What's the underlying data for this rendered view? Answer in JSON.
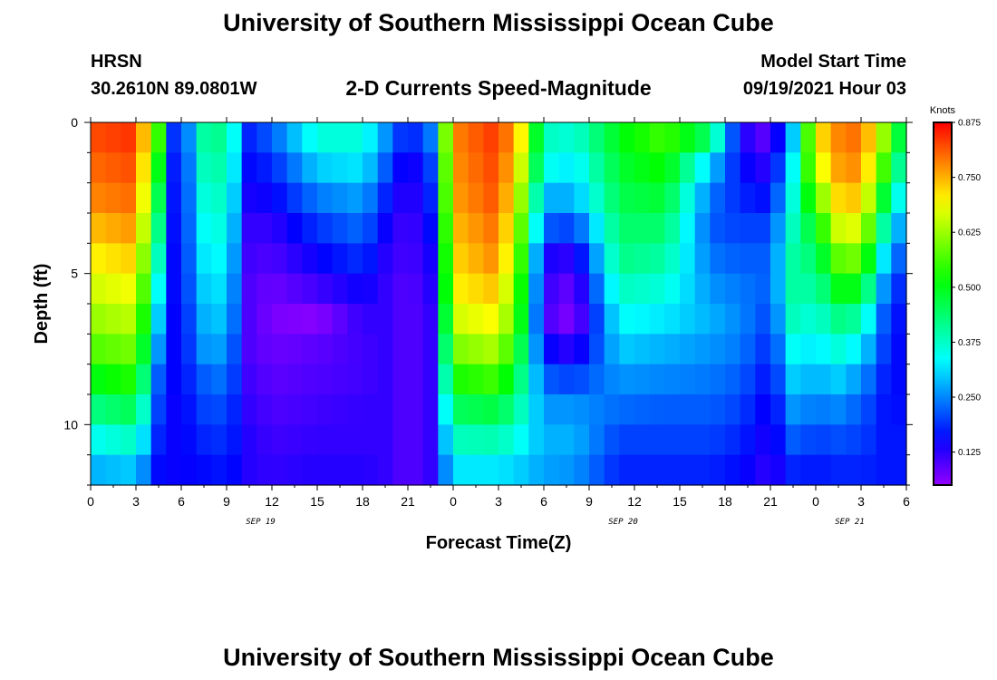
{
  "header": {
    "title": "University of Southern Mississippi Ocean Cube",
    "station": "HRSN",
    "coords": "30.2610N  89.0801W",
    "chart_title": "2-D Currents Speed-Magnitude",
    "model_start_label": "Model Start Time",
    "model_start_value": "09/19/2021 Hour 03"
  },
  "footer": {
    "title": "University of Southern Mississippi Ocean Cube"
  },
  "colors": {
    "low": "#a000ff",
    "mid": "#00ff40",
    "high": "#ff1a00"
  },
  "chart_data": {
    "type": "heatmap",
    "title": "2-D Currents Speed-Magnitude",
    "xlabel": "Forecast Time(Z)",
    "ylabel": "Depth (ft)",
    "x_ticks": [
      "0",
      "3",
      "6",
      "9",
      "12",
      "15",
      "18",
      "21",
      "0",
      "3",
      "6",
      "9",
      "12",
      "15",
      "18",
      "21",
      "0",
      "3",
      "6"
    ],
    "date_labels": [
      {
        "label": "SEP 19",
        "at_tick": 3.75
      },
      {
        "label": "SEP 20",
        "at_tick": 11.75
      },
      {
        "label": "SEP 21",
        "at_tick": 16.75
      }
    ],
    "y_ticks": [
      "0",
      "5",
      "10"
    ],
    "ylim": [
      0,
      12
    ],
    "colorbar": {
      "label": "Knots",
      "ticks": [
        "0.875",
        "0.750",
        "0.625",
        "0.500",
        "0.375",
        "0.250",
        "0.125"
      ],
      "range": [
        0.05,
        0.875
      ]
    },
    "time_columns": 54,
    "depth_rows": 12,
    "time_anchors_hours": [
      0,
      3,
      4.5,
      5,
      6,
      7.5,
      9,
      10.5,
      12,
      15,
      18,
      19.5,
      21,
      22.5,
      24,
      27,
      28.5,
      30,
      32,
      35,
      38,
      41,
      43,
      45,
      46.5,
      48,
      49.5,
      51,
      52.5,
      54
    ],
    "depth_profiles_knots": [
      [
        0.82,
        0.8,
        0.78,
        0.74,
        0.7,
        0.66,
        0.62,
        0.57,
        0.5,
        0.42,
        0.34,
        0.28
      ],
      [
        0.84,
        0.82,
        0.8,
        0.77,
        0.73,
        0.69,
        0.65,
        0.6,
        0.54,
        0.46,
        0.38,
        0.3
      ],
      [
        0.55,
        0.5,
        0.46,
        0.42,
        0.38,
        0.34,
        0.3,
        0.26,
        0.22,
        0.2,
        0.18,
        0.16
      ],
      [
        0.2,
        0.18,
        0.17,
        0.16,
        0.15,
        0.15,
        0.15,
        0.15,
        0.15,
        0.15,
        0.15,
        0.15
      ],
      [
        0.18,
        0.17,
        0.17,
        0.17,
        0.17,
        0.17,
        0.16,
        0.16,
        0.16,
        0.15,
        0.15,
        0.15
      ],
      [
        0.4,
        0.38,
        0.36,
        0.34,
        0.32,
        0.3,
        0.28,
        0.26,
        0.22,
        0.2,
        0.18,
        0.16
      ],
      [
        0.42,
        0.4,
        0.38,
        0.36,
        0.34,
        0.32,
        0.3,
        0.27,
        0.24,
        0.21,
        0.19,
        0.17
      ],
      [
        0.18,
        0.16,
        0.14,
        0.12,
        0.11,
        0.1,
        0.1,
        0.1,
        0.11,
        0.12,
        0.13,
        0.13
      ],
      [
        0.22,
        0.18,
        0.15,
        0.12,
        0.1,
        0.08,
        0.07,
        0.08,
        0.09,
        0.1,
        0.11,
        0.12
      ],
      [
        0.36,
        0.3,
        0.24,
        0.19,
        0.15,
        0.11,
        0.06,
        0.09,
        0.1,
        0.11,
        0.12,
        0.13
      ],
      [
        0.36,
        0.32,
        0.27,
        0.23,
        0.19,
        0.15,
        0.12,
        0.11,
        0.11,
        0.12,
        0.12,
        0.13
      ],
      [
        0.26,
        0.22,
        0.18,
        0.15,
        0.13,
        0.12,
        0.12,
        0.12,
        0.12,
        0.12,
        0.12,
        0.12
      ],
      [
        0.16,
        0.12,
        0.11,
        0.1,
        0.1,
        0.09,
        0.09,
        0.09,
        0.09,
        0.09,
        0.09,
        0.09
      ],
      [
        0.24,
        0.2,
        0.18,
        0.16,
        0.14,
        0.13,
        0.12,
        0.12,
        0.12,
        0.12,
        0.12,
        0.12
      ],
      [
        0.78,
        0.77,
        0.76,
        0.74,
        0.72,
        0.7,
        0.66,
        0.6,
        0.53,
        0.45,
        0.38,
        0.32
      ],
      [
        0.84,
        0.83,
        0.82,
        0.8,
        0.78,
        0.74,
        0.7,
        0.64,
        0.56,
        0.47,
        0.39,
        0.32
      ],
      [
        0.7,
        0.66,
        0.62,
        0.58,
        0.55,
        0.52,
        0.5,
        0.46,
        0.42,
        0.38,
        0.34,
        0.3
      ],
      [
        0.38,
        0.35,
        0.28,
        0.22,
        0.14,
        0.12,
        0.11,
        0.16,
        0.22,
        0.26,
        0.28,
        0.27
      ],
      [
        0.36,
        0.32,
        0.28,
        0.2,
        0.12,
        0.08,
        0.06,
        0.12,
        0.2,
        0.26,
        0.28,
        0.26
      ],
      [
        0.5,
        0.48,
        0.46,
        0.44,
        0.42,
        0.38,
        0.34,
        0.3,
        0.26,
        0.23,
        0.2,
        0.18
      ],
      [
        0.56,
        0.52,
        0.48,
        0.44,
        0.4,
        0.36,
        0.32,
        0.28,
        0.25,
        0.22,
        0.2,
        0.18
      ],
      [
        0.44,
        0.3,
        0.24,
        0.22,
        0.24,
        0.26,
        0.28,
        0.26,
        0.24,
        0.22,
        0.2,
        0.18
      ],
      [
        0.14,
        0.16,
        0.18,
        0.2,
        0.22,
        0.24,
        0.25,
        0.24,
        0.22,
        0.2,
        0.18,
        0.16
      ],
      [
        0.08,
        0.12,
        0.16,
        0.2,
        0.22,
        0.22,
        0.2,
        0.18,
        0.16,
        0.14,
        0.13,
        0.12
      ],
      [
        0.3,
        0.34,
        0.36,
        0.38,
        0.4,
        0.4,
        0.38,
        0.34,
        0.3,
        0.26,
        0.22,
        0.18
      ],
      [
        0.7,
        0.66,
        0.58,
        0.5,
        0.44,
        0.4,
        0.36,
        0.32,
        0.28,
        0.24,
        0.2,
        0.17
      ],
      [
        0.78,
        0.76,
        0.72,
        0.66,
        0.58,
        0.5,
        0.42,
        0.36,
        0.3,
        0.25,
        0.21,
        0.18
      ],
      [
        0.8,
        0.78,
        0.74,
        0.68,
        0.6,
        0.5,
        0.4,
        0.32,
        0.26,
        0.22,
        0.2,
        0.18
      ],
      [
        0.62,
        0.56,
        0.48,
        0.4,
        0.32,
        0.26,
        0.22,
        0.2,
        0.18,
        0.17,
        0.17,
        0.17
      ],
      [
        0.4,
        0.34,
        0.28,
        0.22,
        0.18,
        0.15,
        0.14,
        0.14,
        0.15,
        0.16,
        0.17,
        0.17
      ]
    ]
  }
}
